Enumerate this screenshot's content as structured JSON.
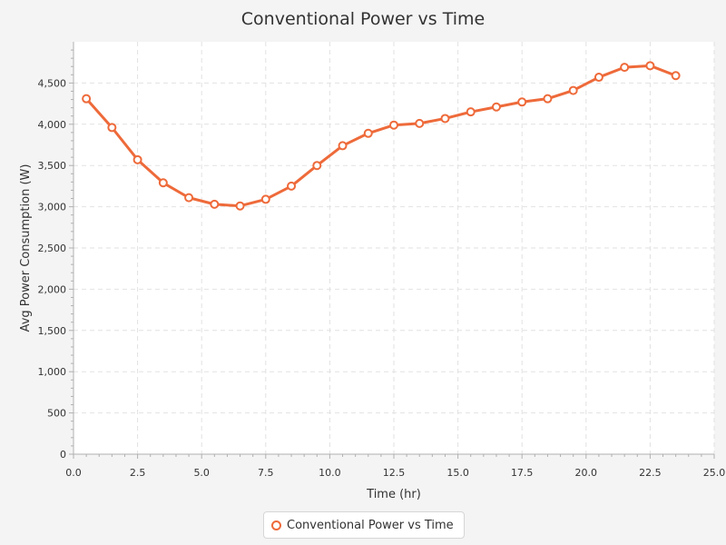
{
  "colors": {
    "series": "#ee6a3a",
    "background": "#f4f4f4",
    "plot_background": "#ffffff",
    "grid": "#e2e2e2",
    "axis": "#b0b0b0"
  },
  "chart_data": {
    "type": "line",
    "title": "Conventional Power vs Time",
    "xlabel": "Time (hr)",
    "ylabel": "Avg Power Consumption (W)",
    "xlim": [
      0,
      25
    ],
    "ylim": [
      0,
      5000
    ],
    "x_ticks": [
      "0.0",
      "2.5",
      "5.0",
      "7.5",
      "10.0",
      "12.5",
      "15.0",
      "17.5",
      "20.0",
      "22.5",
      "25.0"
    ],
    "y_ticks": [
      "0",
      "500",
      "1,000",
      "1,500",
      "2,000",
      "2,500",
      "3,000",
      "3,500",
      "4,000",
      "4,500"
    ],
    "grid": true,
    "legend_position": "bottom-center",
    "series": [
      {
        "name": "Conventional Power vs Time",
        "x": [
          0.5,
          1.5,
          2.5,
          3.5,
          4.5,
          5.5,
          6.5,
          7.5,
          8.5,
          9.5,
          10.5,
          11.5,
          12.5,
          13.5,
          14.5,
          15.5,
          16.5,
          17.5,
          18.5,
          19.5,
          20.5,
          21.5,
          22.5,
          23.5
        ],
        "y": [
          4310,
          3960,
          3570,
          3290,
          3110,
          3030,
          3010,
          3090,
          3250,
          3500,
          3740,
          3890,
          3990,
          4010,
          4070,
          4150,
          4210,
          4270,
          4310,
          4410,
          4570,
          4690,
          4710,
          4590
        ]
      }
    ]
  }
}
